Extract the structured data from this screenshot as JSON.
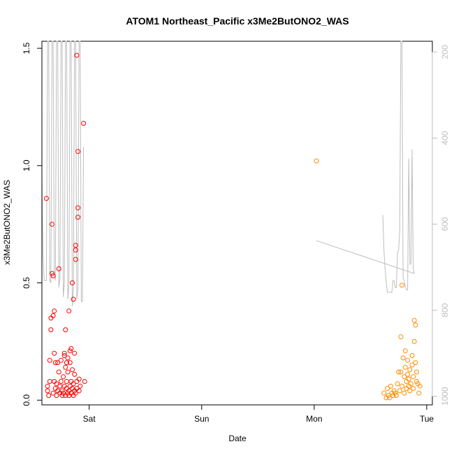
{
  "chart_data": {
    "type": "scatter",
    "title": "ATOM1 Northeast_Pacific x3Me2ButONO2_WAS",
    "xlabel": "Date",
    "ylabel": "x3Me2ButONO2_WAS",
    "x_ticks": [
      {
        "label": "Sat",
        "day": 1.0
      },
      {
        "label": "Sun",
        "day": 2.0
      },
      {
        "label": "Mon",
        "day": 3.0
      },
      {
        "label": "Tue",
        "day": 4.0
      }
    ],
    "xlim_days": [
      0.58,
      4.05
    ],
    "ylim": [
      -0.02,
      1.53
    ],
    "y_ticks": [
      0.0,
      0.5,
      1.0,
      1.5
    ],
    "y2_ticks": [
      200,
      400,
      600,
      800,
      1000
    ],
    "y2lim": [
      1020,
      175
    ],
    "grid": false,
    "legend": "none",
    "colors": {
      "series1": "#ff0000",
      "series2": "#ff8c00",
      "altitude": "#bebebe",
      "axis": "#000000",
      "axis2": "#bebebe"
    },
    "series": [
      {
        "marker": "circle-open",
        "color": "#ff0000",
        "points": [
          [
            0.62,
            0.86
          ],
          [
            0.63,
            0.06
          ],
          [
            0.63,
            0.04
          ],
          [
            0.64,
            0.02
          ],
          [
            0.65,
            0.08
          ],
          [
            0.65,
            0.17
          ],
          [
            0.66,
            0.3
          ],
          [
            0.66,
            0.35
          ],
          [
            0.67,
            0.75
          ],
          [
            0.67,
            0.54
          ],
          [
            0.68,
            0.53
          ],
          [
            0.68,
            0.36
          ],
          [
            0.68,
            0.03
          ],
          [
            0.69,
            0.08
          ],
          [
            0.69,
            0.2
          ],
          [
            0.69,
            0.38
          ],
          [
            0.7,
            0.05
          ],
          [
            0.7,
            0.16
          ],
          [
            0.71,
            0.02
          ],
          [
            0.71,
            0.07
          ],
          [
            0.72,
            0.04
          ],
          [
            0.72,
            0.16
          ],
          [
            0.73,
            0.12
          ],
          [
            0.73,
            0.56
          ],
          [
            0.74,
            0.06
          ],
          [
            0.74,
            0.03
          ],
          [
            0.75,
            0.17
          ],
          [
            0.75,
            0.08
          ],
          [
            0.76,
            0.04
          ],
          [
            0.76,
            0.02
          ],
          [
            0.77,
            0.03
          ],
          [
            0.77,
            0.1
          ],
          [
            0.78,
            0.06
          ],
          [
            0.78,
            0.19
          ],
          [
            0.78,
            0.2
          ],
          [
            0.79,
            0.3
          ],
          [
            0.79,
            0.14
          ],
          [
            0.79,
            0.02
          ],
          [
            0.8,
            0.16
          ],
          [
            0.8,
            0.05
          ],
          [
            0.8,
            0.08
          ],
          [
            0.81,
            0.03
          ],
          [
            0.81,
            0.18
          ],
          [
            0.81,
            0.12
          ],
          [
            0.82,
            0.04
          ],
          [
            0.82,
            0.02
          ],
          [
            0.82,
            0.38
          ],
          [
            0.83,
            0.06
          ],
          [
            0.83,
            0.21
          ],
          [
            0.83,
            0.16
          ],
          [
            0.84,
            0.22
          ],
          [
            0.84,
            0.08
          ],
          [
            0.84,
            0.03
          ],
          [
            0.85,
            0.05
          ],
          [
            0.85,
            0.13
          ],
          [
            0.85,
            0.5
          ],
          [
            0.86,
            0.43
          ],
          [
            0.86,
            0.02
          ],
          [
            0.86,
            0.07
          ],
          [
            0.87,
            0.2
          ],
          [
            0.87,
            0.11
          ],
          [
            0.87,
            0.04
          ],
          [
            0.88,
            0.03
          ],
          [
            0.88,
            0.6
          ],
          [
            0.88,
            0.66
          ],
          [
            0.88,
            0.64
          ],
          [
            0.89,
            1.47
          ],
          [
            0.89,
            0.08
          ],
          [
            0.89,
            0.05
          ],
          [
            0.9,
            0.82
          ],
          [
            0.9,
            0.78
          ],
          [
            0.9,
            1.06
          ],
          [
            0.91,
            0.09
          ],
          [
            0.91,
            0.04
          ],
          [
            0.92,
            0.06
          ],
          [
            0.95,
            1.18
          ],
          [
            0.96,
            0.08
          ]
        ]
      },
      {
        "marker": "circle-open",
        "color": "#ff8c00",
        "points": [
          [
            3.02,
            1.02
          ],
          [
            3.62,
            0.03
          ],
          [
            3.64,
            0.01
          ],
          [
            3.65,
            0.05
          ],
          [
            3.66,
            0.02
          ],
          [
            3.67,
            0.01
          ],
          [
            3.68,
            0.06
          ],
          [
            3.69,
            0.03
          ],
          [
            3.7,
            0.02
          ],
          [
            3.71,
            0.04
          ],
          [
            3.72,
            0.03
          ],
          [
            3.73,
            0.02
          ],
          [
            3.74,
            0.07
          ],
          [
            3.75,
            0.12
          ],
          [
            3.76,
            0.04
          ],
          [
            3.77,
            0.12
          ],
          [
            3.77,
            0.27
          ],
          [
            3.78,
            0.49
          ],
          [
            3.78,
            0.06
          ],
          [
            3.79,
            0.18
          ],
          [
            3.8,
            0.1
          ],
          [
            3.8,
            0.03
          ],
          [
            3.81,
            0.21
          ],
          [
            3.81,
            0.14
          ],
          [
            3.82,
            0.08
          ],
          [
            3.82,
            0.05
          ],
          [
            3.83,
            0.17
          ],
          [
            3.83,
            0.11
          ],
          [
            3.84,
            0.06
          ],
          [
            3.84,
            0.09
          ],
          [
            3.85,
            0.04
          ],
          [
            3.85,
            0.13
          ],
          [
            3.86,
            0.07
          ],
          [
            3.87,
            0.19
          ],
          [
            3.87,
            0.15
          ],
          [
            3.88,
            0.1
          ],
          [
            3.88,
            0.05
          ],
          [
            3.89,
            0.34
          ],
          [
            3.89,
            0.25
          ],
          [
            3.9,
            0.32
          ],
          [
            3.9,
            0.16
          ],
          [
            3.91,
            0.08
          ],
          [
            3.91,
            0.12
          ],
          [
            3.92,
            0.07
          ],
          [
            3.93,
            0.03
          ],
          [
            3.94,
            0.06
          ]
        ]
      }
    ],
    "altitude_line": [
      [
        0.58,
        0.95
      ],
      [
        0.59,
        0.62
      ],
      [
        0.6,
        0.51
      ],
      [
        0.61,
        0.51
      ],
      [
        0.62,
        0.51
      ],
      [
        0.63,
        1.53
      ],
      [
        0.64,
        1.53
      ],
      [
        0.65,
        0.51
      ],
      [
        0.66,
        0.5
      ],
      [
        0.67,
        1.53
      ],
      [
        0.68,
        1.53
      ],
      [
        0.69,
        0.55
      ],
      [
        0.7,
        0.51
      ],
      [
        0.71,
        1.53
      ],
      [
        0.72,
        1.53
      ],
      [
        0.73,
        0.48
      ],
      [
        0.74,
        0.52
      ],
      [
        0.75,
        1.53
      ],
      [
        0.76,
        1.53
      ],
      [
        0.77,
        0.44
      ],
      [
        0.78,
        0.5
      ],
      [
        0.79,
        1.53
      ],
      [
        0.8,
        1.53
      ],
      [
        0.81,
        0.43
      ],
      [
        0.82,
        0.49
      ],
      [
        0.83,
        1.53
      ],
      [
        0.84,
        1.53
      ],
      [
        0.85,
        0.4
      ],
      [
        0.86,
        0.47
      ],
      [
        0.87,
        1.53
      ],
      [
        0.88,
        1.53
      ],
      [
        0.89,
        0.43
      ],
      [
        0.9,
        0.47
      ],
      [
        0.91,
        1.53
      ],
      [
        0.92,
        1.53
      ],
      [
        0.93,
        0.42
      ],
      [
        0.94,
        0.42
      ],
      [
        0.95,
        1.08
      ],
      [
        3.61,
        0.79
      ],
      [
        3.62,
        0.64
      ],
      [
        3.63,
        0.56
      ],
      [
        3.64,
        0.5
      ],
      [
        3.65,
        0.46
      ],
      [
        3.66,
        0.46
      ],
      [
        3.67,
        0.46
      ],
      [
        3.68,
        0.46
      ],
      [
        3.69,
        0.46
      ],
      [
        3.7,
        0.51
      ],
      [
        3.71,
        0.51
      ],
      [
        3.72,
        0.48
      ],
      [
        3.73,
        0.48
      ],
      [
        3.74,
        0.63
      ],
      [
        3.75,
        0.64
      ],
      [
        3.76,
        0.72
      ],
      [
        3.77,
        1.53
      ],
      [
        3.78,
        1.53
      ],
      [
        3.79,
        0.52
      ],
      [
        3.8,
        0.51
      ],
      [
        3.81,
        0.48
      ],
      [
        3.82,
        0.47
      ],
      [
        3.83,
        0.47
      ],
      [
        3.84,
        1.03
      ],
      [
        3.85,
        0.58
      ],
      [
        3.86,
        0.58
      ],
      [
        3.87,
        1.07
      ],
      [
        3.88,
        0.56
      ],
      [
        3.89,
        0.54
      ],
      [
        3.02,
        0.68
      ]
    ]
  }
}
